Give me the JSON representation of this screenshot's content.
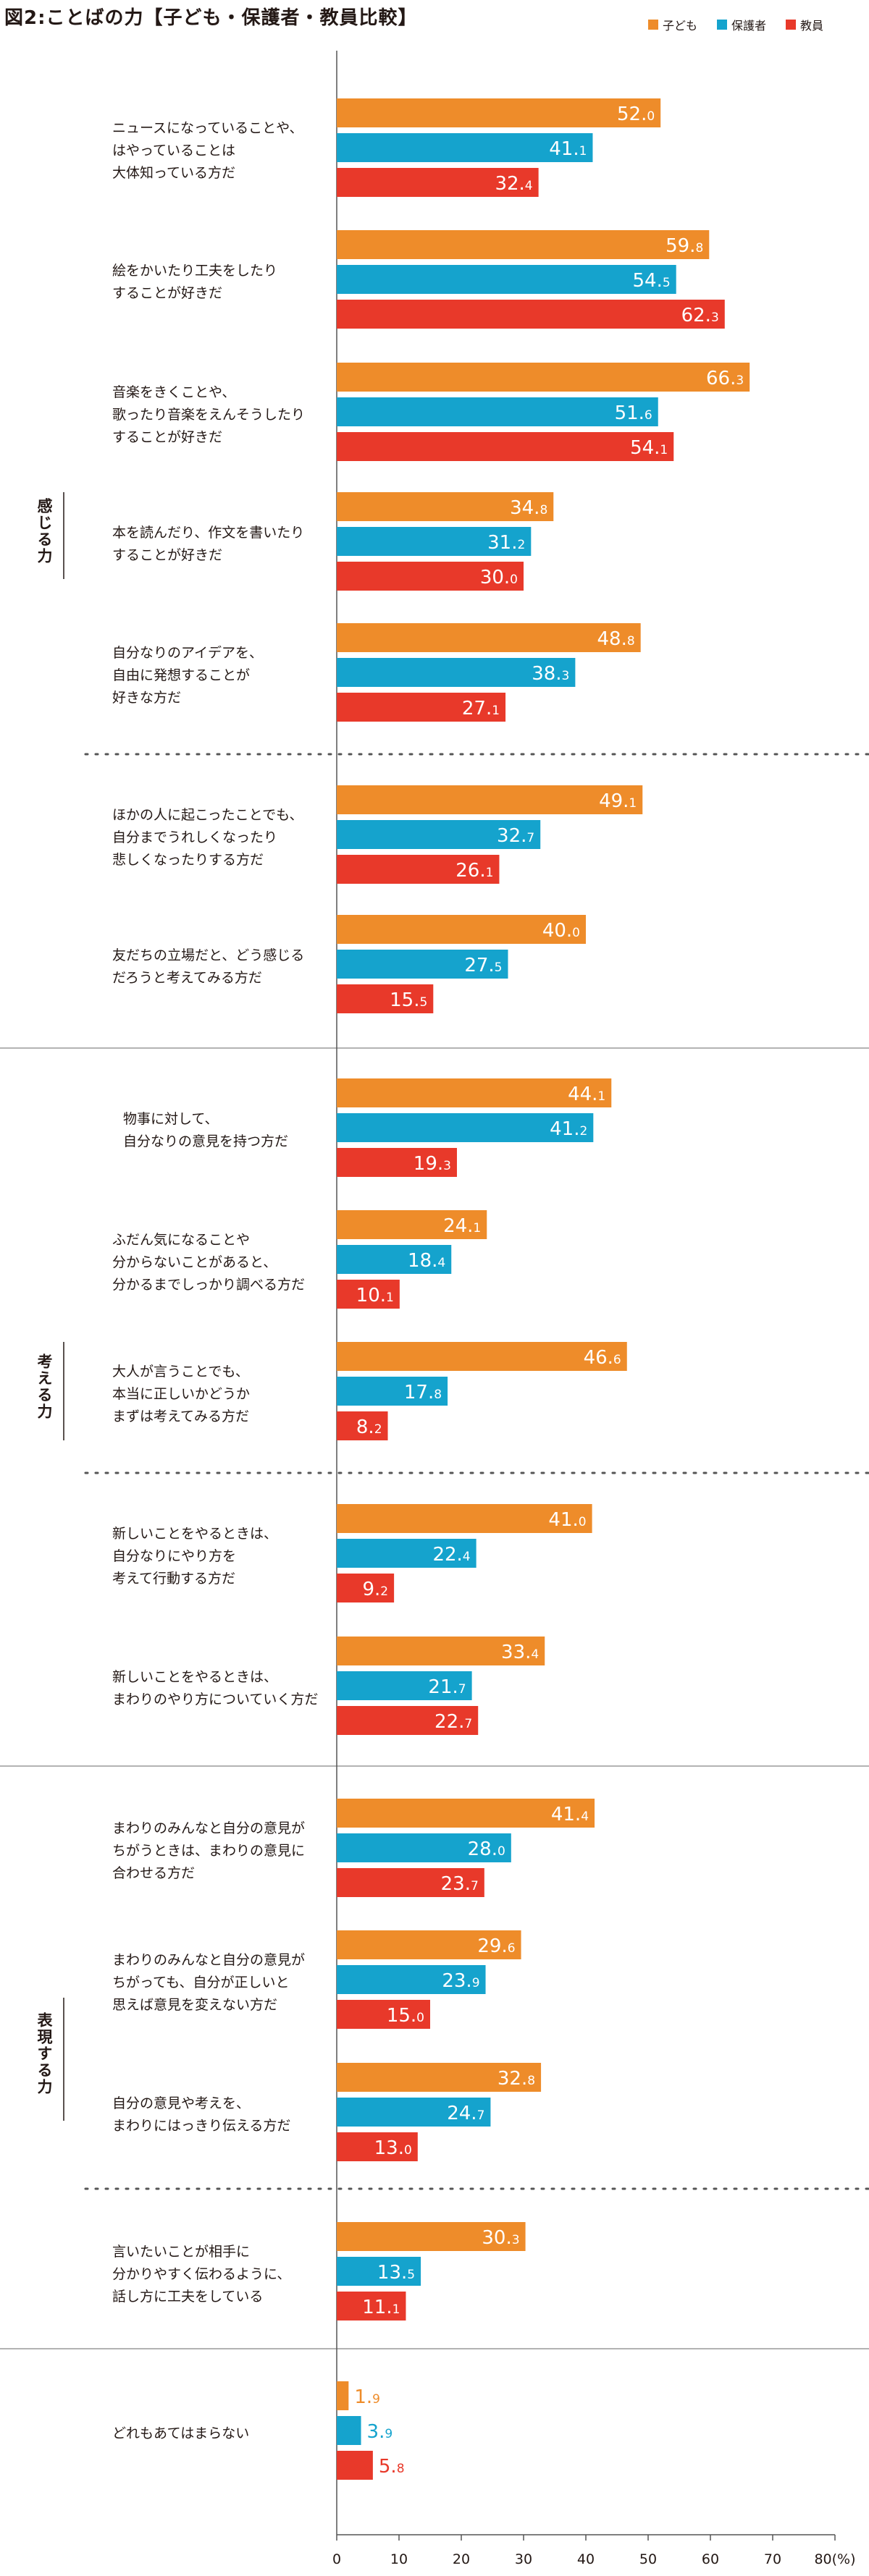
{
  "title": "図2:ことばの力【子ども・保護者・教員比較】",
  "legend": [
    "子ども",
    "保護者",
    "教員"
  ],
  "colors": {
    "child": "#ee8c2a",
    "parent": "#15a3cd",
    "teacher": "#e8392a"
  },
  "chart_data": {
    "type": "bar",
    "orientation": "horizontal",
    "series_names": [
      "子ども",
      "保護者",
      "教員"
    ],
    "xlim": [
      0,
      80
    ],
    "xticks": [
      "0",
      "10",
      "20",
      "30",
      "40",
      "50",
      "60",
      "70",
      "80(%)"
    ],
    "groups": [
      {
        "label": "感じる力",
        "items": [
          {
            "text": "ニュースになっていることや、\nはやっていることは\n大体知っている方だ",
            "values": [
              52.0,
              41.1,
              32.4
            ]
          },
          {
            "text": "絵をかいたり工夫をしたり\nすることが好きだ",
            "values": [
              59.8,
              54.5,
              62.3
            ]
          },
          {
            "text": "音楽をきくことや、\n歌ったり音楽をえんそうしたり\nすることが好きだ",
            "values": [
              66.3,
              51.6,
              54.1
            ]
          },
          {
            "text": "本を読んだり、作文を書いたり\nすることが好きだ",
            "values": [
              34.8,
              31.2,
              30.0
            ]
          },
          {
            "text": "自分なりのアイデアを、\n自由に発想することが\n好きな方だ",
            "values": [
              48.8,
              38.3,
              27.1
            ]
          },
          {
            "text": "ほかの人に起こったことでも、\n自分までうれしくなったり\n悲しくなったりする方だ",
            "values": [
              49.1,
              32.7,
              26.1
            ]
          },
          {
            "text": "友だちの立場だと、どう感じる\nだろうと考えてみる方だ",
            "values": [
              40.0,
              27.5,
              15.5
            ]
          }
        ]
      },
      {
        "label": "考える力",
        "items": [
          {
            "text": "物事に対して、\n自分なりの意見を持つ方だ",
            "values": [
              44.1,
              41.2,
              19.3
            ]
          },
          {
            "text": "ふだん気になることや\n分からないことがあると、\n分かるまでしっかり調べる方だ",
            "values": [
              24.1,
              18.4,
              10.1
            ]
          },
          {
            "text": "大人が言うことでも、\n本当に正しいかどうか\nまずは考えてみる方だ",
            "values": [
              46.6,
              17.8,
              8.2
            ]
          },
          {
            "text": "新しいことをやるときは、\n自分なりにやり方を\n考えて行動する方だ",
            "values": [
              41.0,
              22.4,
              9.2
            ]
          },
          {
            "text": "新しいことをやるときは、\nまわりのやり方についていく方だ",
            "values": [
              33.4,
              21.7,
              22.7
            ]
          }
        ]
      },
      {
        "label": "表現する力",
        "items": [
          {
            "text": "まわりのみんなと自分の意見が\nちがうときは、まわりの意見に\n合わせる方だ",
            "values": [
              41.4,
              28.0,
              23.7
            ]
          },
          {
            "text": "まわりのみんなと自分の意見が\nちがっても、自分が正しいと\n思えば意見を変えない方だ",
            "values": [
              29.6,
              23.9,
              15.0
            ]
          },
          {
            "text": "自分の意見や考えを、\nまわりにはっきり伝える方だ",
            "values": [
              32.8,
              24.7,
              13.0
            ]
          },
          {
            "text": "言いたいことが相手に\n分かりやすく伝わるように、\n話し方に工夫をしている",
            "values": [
              30.3,
              13.5,
              11.1
            ]
          }
        ]
      },
      {
        "label": "",
        "items": [
          {
            "text": "どれもあてはまらない",
            "values": [
              1.9,
              3.9,
              5.8
            ]
          }
        ]
      }
    ]
  }
}
